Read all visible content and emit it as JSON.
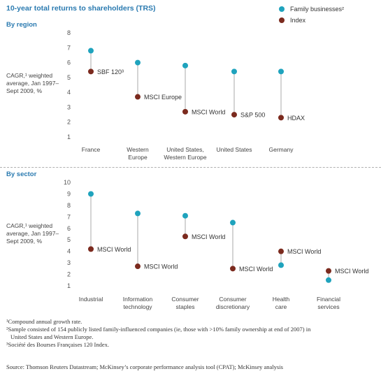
{
  "title": "10-year total returns to shareholders (TRS)",
  "legend": {
    "family_label": "Family businesses²",
    "index_label": "Index"
  },
  "colors": {
    "family": "#1fa3bd",
    "index": "#7b2a1e",
    "connector": "#aaaaaa",
    "accent": "#2a7ab0"
  },
  "y_axis_label": [
    "CAGR,¹ weighted",
    "average, Jan 1997–",
    "Sept 2009, %"
  ],
  "chart_data": [
    {
      "type": "scatter",
      "section_title": "By region",
      "categories": [
        [
          "France"
        ],
        [
          "Western",
          "Europe"
        ],
        [
          "United States,",
          "Western Europe"
        ],
        [
          "United States"
        ],
        [
          "Germany"
        ]
      ],
      "series": [
        {
          "name": "Family businesses²",
          "values": [
            6.8,
            6.0,
            5.8,
            5.4,
            5.4
          ]
        },
        {
          "name": "Index",
          "values": [
            5.4,
            3.7,
            2.7,
            2.5,
            2.3
          ]
        }
      ],
      "index_labels": [
        "SBF 120³",
        "MSCI Europe",
        "MSCI World",
        "S&P 500",
        "HDAX"
      ],
      "yticks": [
        1,
        2,
        3,
        4,
        5,
        6,
        7,
        8
      ],
      "ylim": [
        1,
        8
      ]
    },
    {
      "type": "scatter",
      "section_title": "By sector",
      "categories": [
        [
          "Industrial"
        ],
        [
          "Information",
          "technology"
        ],
        [
          "Consumer",
          "staples"
        ],
        [
          "Consumer",
          "discretionary"
        ],
        [
          "Health",
          "care"
        ],
        [
          "Financial",
          "services"
        ]
      ],
      "series": [
        {
          "name": "Family businesses²",
          "values": [
            9.0,
            7.3,
            7.1,
            6.5,
            2.8,
            1.5
          ]
        },
        {
          "name": "Index",
          "values": [
            4.2,
            2.7,
            5.3,
            2.5,
            4.0,
            2.3
          ]
        }
      ],
      "index_labels": [
        "MSCI World",
        "MSCI World",
        "MSCI World",
        "MSCI World",
        "MSCI World",
        "MSCI World"
      ],
      "yticks": [
        1,
        2,
        3,
        4,
        5,
        6,
        7,
        8,
        9,
        10
      ],
      "ylim": [
        1,
        10
      ]
    }
  ],
  "footnotes": [
    "¹Compound annual growth rate.",
    "²Sample consisted of 154 publicly listed family-influenced companies (ie, those with >10% family ownership at end of 2007) in",
    "  United States and Western Europe.",
    "³Société des Bourses Françaises 120 Index."
  ],
  "source": "Source: Thomson Reuters Datastream; McKinsey’s corporate performance analysis tool (CPAT); McKinsey analysis"
}
